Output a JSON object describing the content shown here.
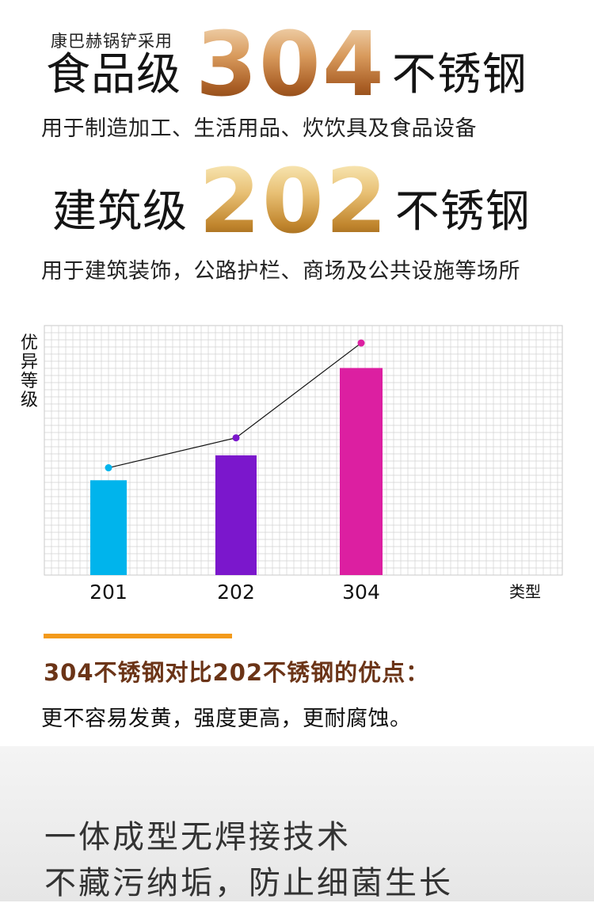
{
  "intro": {
    "text": "康巴赫锅铲采用"
  },
  "grade304": {
    "label": "食品级",
    "number": "304",
    "suffix": "不锈钢",
    "usage": "用于制造加工、生活用品、炊饮具及食品设备"
  },
  "grade202": {
    "label": "建筑级",
    "number": "202",
    "suffix": "不锈钢",
    "usage": "用于建筑装饰，公路护栏、商场及公共设施等场所"
  },
  "chart_data": {
    "type": "bar",
    "ylabel": "优异等级",
    "xlabel": "类型",
    "categories": [
      "201",
      "202",
      "304"
    ],
    "values": [
      38,
      48,
      83
    ],
    "line_values": [
      43,
      55,
      93
    ],
    "colors": [
      "#00b4ec",
      "#7b17cc",
      "#dc1fa1"
    ],
    "grid": true,
    "ylim": [
      0,
      100
    ]
  },
  "advantages": {
    "title": "304不锈钢对比202不锈钢的优点：",
    "text": "更不容易发黄，强度更高，更耐腐蚀。"
  },
  "features": {
    "line1": "一体成型无焊接技术",
    "line2": "不藏污纳垢，防止细菌生长"
  }
}
